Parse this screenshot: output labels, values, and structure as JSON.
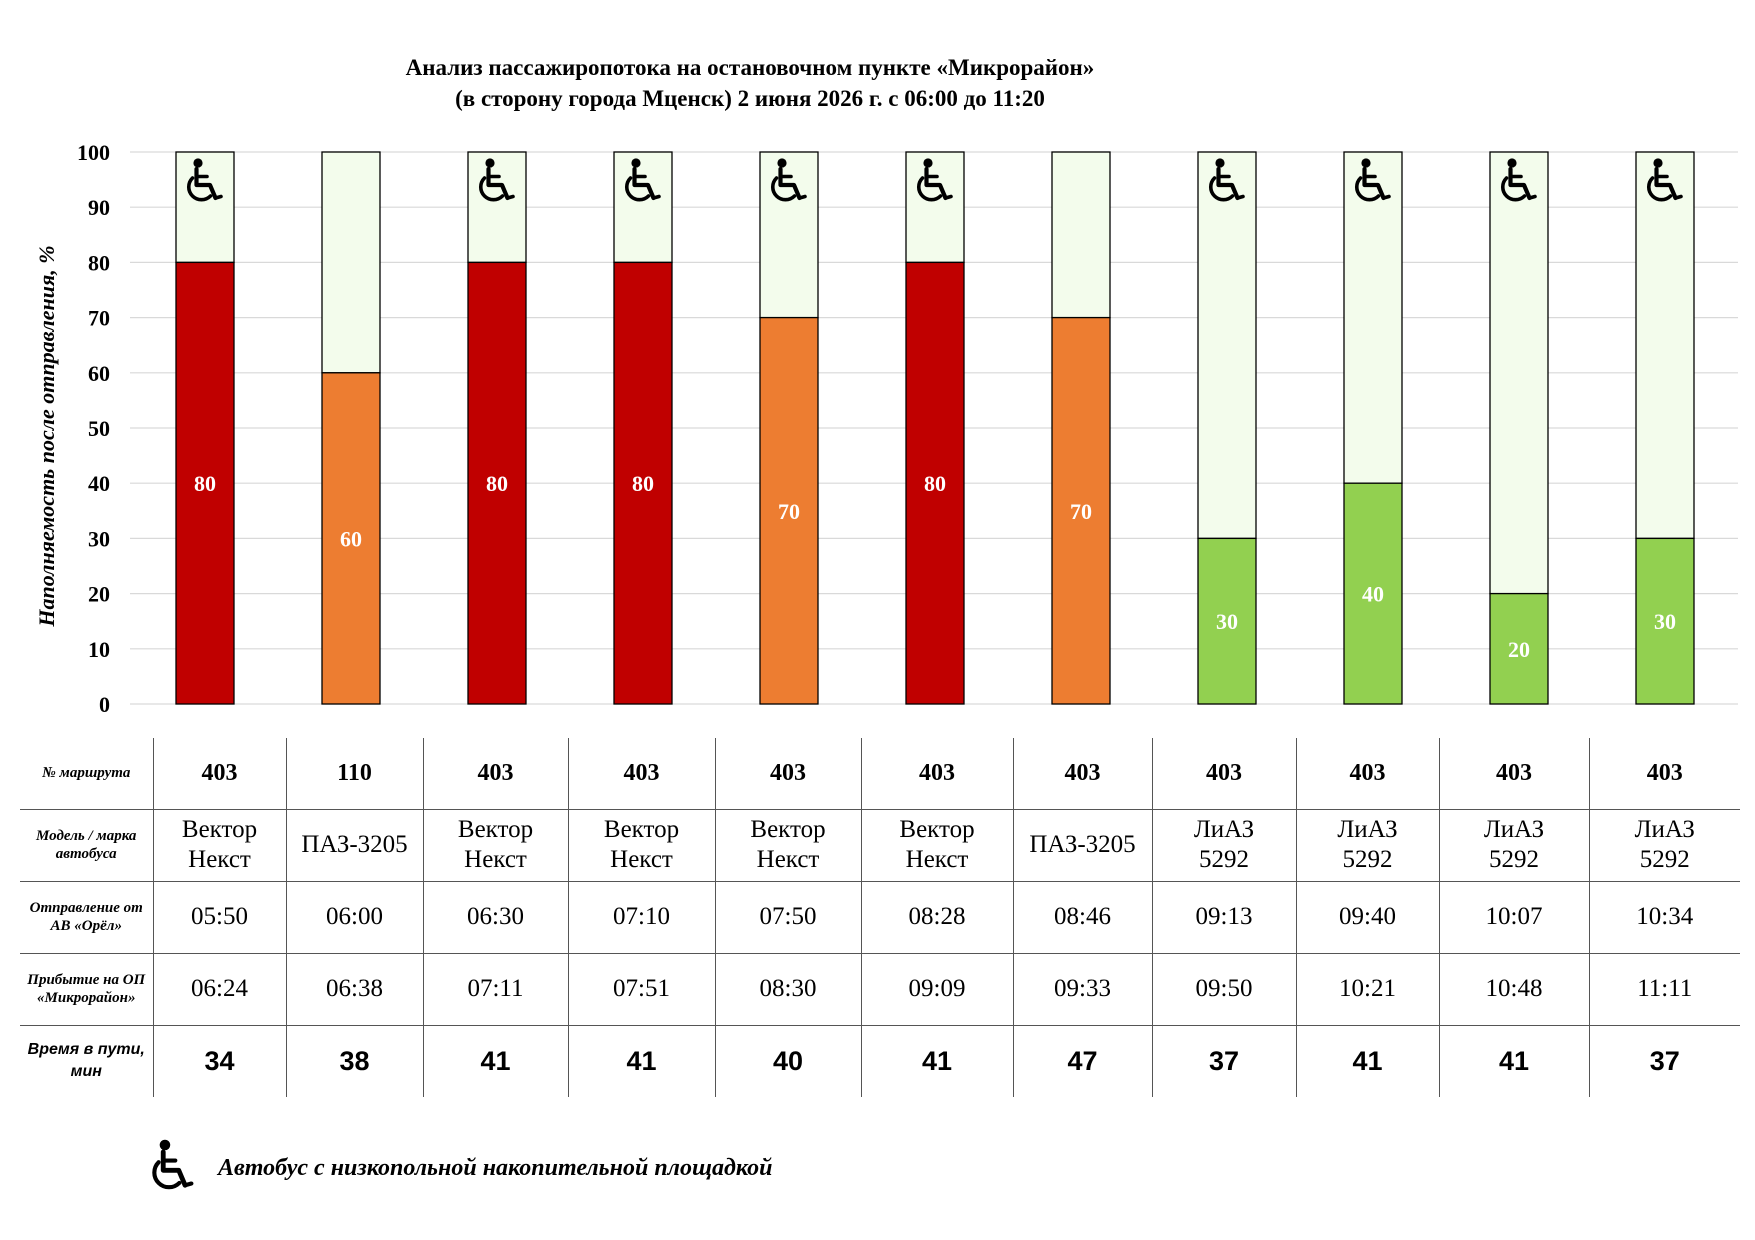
{
  "chart_data": {
    "type": "bar",
    "stacked": true,
    "title_lines": [
      "Анализ пассажиропотока на остановочном пункте «Микрорайон»",
      "(в сторону города Мценск) 2 июня 2026 г. с 06:00 до 11:20"
    ],
    "ylabel": "Наполняемость после отправления, %",
    "ylim": [
      0,
      100
    ],
    "yticks": [
      0,
      10,
      20,
      30,
      40,
      50,
      60,
      70,
      80,
      90,
      100
    ],
    "grid": true,
    "categories": [
      "05:50",
      "06:00",
      "06:30",
      "07:10",
      "07:50",
      "08:28",
      "08:46",
      "09:13",
      "09:40",
      "10:07",
      "10:34"
    ],
    "values": [
      80,
      60,
      80,
      80,
      70,
      80,
      70,
      30,
      40,
      20,
      30
    ],
    "total": 100,
    "low_floor": [
      true,
      false,
      true,
      true,
      true,
      true,
      false,
      true,
      true,
      true,
      true
    ],
    "colors": {
      "high": "#C00000",
      "medium": "#ED7D31",
      "low": "#92D050",
      "remaining": "#F3FCEC",
      "grid": "#D9D9D9",
      "bar_outline": "#000000",
      "label": "#FFFFFF"
    },
    "color_by_value": {
      "high_min": 80,
      "medium_min": 50
    }
  },
  "table": {
    "row_headers": {
      "route": "№ маршрута",
      "model": "Модель / марка автобуса",
      "departure": "Отправление от АВ «Орёл»",
      "arrival": "Прибытие на ОП «Микрорайон»",
      "travel": "Время в пути, мин"
    },
    "routes": [
      "403",
      "110",
      "403",
      "403",
      "403",
      "403",
      "403",
      "403",
      "403",
      "403",
      "403"
    ],
    "models": [
      [
        "Вектор",
        "Некст"
      ],
      [
        "ПАЗ-3205"
      ],
      [
        "Вектор",
        "Некст"
      ],
      [
        "Вектор",
        "Некст"
      ],
      [
        "Вектор",
        "Некст"
      ],
      [
        "Вектор",
        "Некст"
      ],
      [
        "ПАЗ-3205"
      ],
      [
        "ЛиАЗ",
        "5292"
      ],
      [
        "ЛиАЗ",
        "5292"
      ],
      [
        "ЛиАЗ",
        "5292"
      ],
      [
        "ЛиАЗ",
        "5292"
      ]
    ],
    "departures": [
      "05:50",
      "06:00",
      "06:30",
      "07:10",
      "07:50",
      "08:28",
      "08:46",
      "09:13",
      "09:40",
      "10:07",
      "10:34"
    ],
    "arrivals": [
      "06:24",
      "06:38",
      "07:11",
      "07:51",
      "08:30",
      "09:09",
      "09:33",
      "09:50",
      "10:21",
      "10:48",
      "11:11"
    ],
    "travel_times": [
      "34",
      "38",
      "41",
      "41",
      "40",
      "41",
      "47",
      "37",
      "41",
      "41",
      "37"
    ]
  },
  "legend": {
    "icon": "wheelchair-icon",
    "text": "Автобус с низкопольной накопительной площадкой"
  }
}
